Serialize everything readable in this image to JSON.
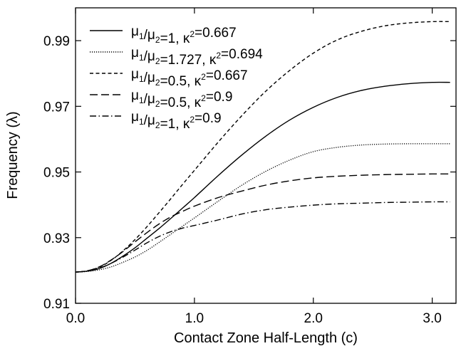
{
  "chart_data": {
    "type": "line",
    "xlabel": "Contact Zone Half-Length (c)",
    "ylabel": "Frequency (λ)",
    "xlim": [
      0,
      3.2
    ],
    "ylim": [
      0.91,
      1.0
    ],
    "xticks": [
      0.0,
      1.0,
      2.0,
      3.0
    ],
    "xtick_labels": [
      "0.0",
      "1.0",
      "2.0",
      "3.0"
    ],
    "yticks": [
      0.91,
      0.93,
      0.95,
      0.97,
      0.99
    ],
    "ytick_labels": [
      "0.91",
      "0.93",
      "0.95",
      "0.97",
      "0.99"
    ],
    "legend_position": "top-left",
    "grid": false,
    "series": [
      {
        "name": "μ1/μ2=1, κ2=0.667",
        "style": "solid",
        "x": [
          0.0,
          0.1,
          0.2,
          0.3,
          0.4,
          0.5,
          0.6,
          0.7,
          0.8,
          0.9,
          1.0,
          1.2,
          1.4,
          1.6,
          1.8,
          2.0,
          2.2,
          2.4,
          2.6,
          2.8,
          3.0,
          3.15
        ],
        "y": [
          0.9195,
          0.9198,
          0.9206,
          0.9222,
          0.9244,
          0.9269,
          0.9298,
          0.9327,
          0.9358,
          0.939,
          0.9422,
          0.9489,
          0.9552,
          0.9609,
          0.9658,
          0.9697,
          0.9727,
          0.9748,
          0.9761,
          0.9769,
          0.9773,
          0.9773
        ]
      },
      {
        "name": "μ1/μ2=1.727, κ2=0.694",
        "style": "dotted",
        "x": [
          0.0,
          0.1,
          0.2,
          0.3,
          0.4,
          0.5,
          0.6,
          0.7,
          0.8,
          0.9,
          1.0,
          1.2,
          1.4,
          1.6,
          1.8,
          2.0,
          2.2,
          2.4,
          2.6,
          2.8,
          3.0,
          3.15
        ],
        "y": [
          0.9195,
          0.9197,
          0.9202,
          0.9211,
          0.9225,
          0.9241,
          0.9261,
          0.9285,
          0.931,
          0.9335,
          0.936,
          0.9411,
          0.946,
          0.9502,
          0.9536,
          0.9562,
          0.9575,
          0.9582,
          0.9585,
          0.9586,
          0.9586,
          0.9586
        ]
      },
      {
        "name": "μ1/μ2=0.5, κ2=0.667",
        "style": "short-dash",
        "x": [
          0.0,
          0.1,
          0.2,
          0.3,
          0.4,
          0.5,
          0.6,
          0.7,
          0.8,
          0.9,
          1.0,
          1.2,
          1.4,
          1.6,
          1.8,
          2.0,
          2.2,
          2.4,
          2.6,
          2.8,
          3.0,
          3.15
        ],
        "y": [
          0.9195,
          0.9199,
          0.921,
          0.9231,
          0.926,
          0.9294,
          0.9333,
          0.9375,
          0.9418,
          0.9462,
          0.9505,
          0.9591,
          0.9672,
          0.9746,
          0.9809,
          0.9862,
          0.9902,
          0.9928,
          0.9945,
          0.9954,
          0.9958,
          0.9958
        ]
      },
      {
        "name": "μ1/μ2=0.5, κ2=0.9",
        "style": "long-dash",
        "x": [
          0.0,
          0.1,
          0.2,
          0.3,
          0.4,
          0.5,
          0.6,
          0.7,
          0.8,
          0.9,
          1.0,
          1.2,
          1.4,
          1.6,
          1.8,
          2.0,
          2.2,
          2.4,
          2.6,
          2.8,
          3.0,
          3.15
        ],
        "y": [
          0.9195,
          0.9199,
          0.9211,
          0.9232,
          0.9258,
          0.9287,
          0.9315,
          0.9341,
          0.9363,
          0.938,
          0.9396,
          0.9422,
          0.9442,
          0.946,
          0.9473,
          0.9482,
          0.9487,
          0.949,
          0.9492,
          0.9493,
          0.9494,
          0.9494
        ]
      },
      {
        "name": "μ1/μ2=1, κ2=0.9",
        "style": "dash-dot",
        "x": [
          0.0,
          0.1,
          0.2,
          0.3,
          0.4,
          0.5,
          0.6,
          0.7,
          0.8,
          0.9,
          1.0,
          1.2,
          1.4,
          1.6,
          1.8,
          2.0,
          2.2,
          2.4,
          2.6,
          2.8,
          3.0,
          3.15
        ],
        "y": [
          0.9195,
          0.9198,
          0.9207,
          0.9222,
          0.9241,
          0.9262,
          0.9284,
          0.9303,
          0.9318,
          0.9329,
          0.9337,
          0.9354,
          0.9372,
          0.9385,
          0.9393,
          0.9399,
          0.9403,
          0.9405,
          0.9407,
          0.9408,
          0.9409,
          0.9409
        ]
      }
    ]
  }
}
